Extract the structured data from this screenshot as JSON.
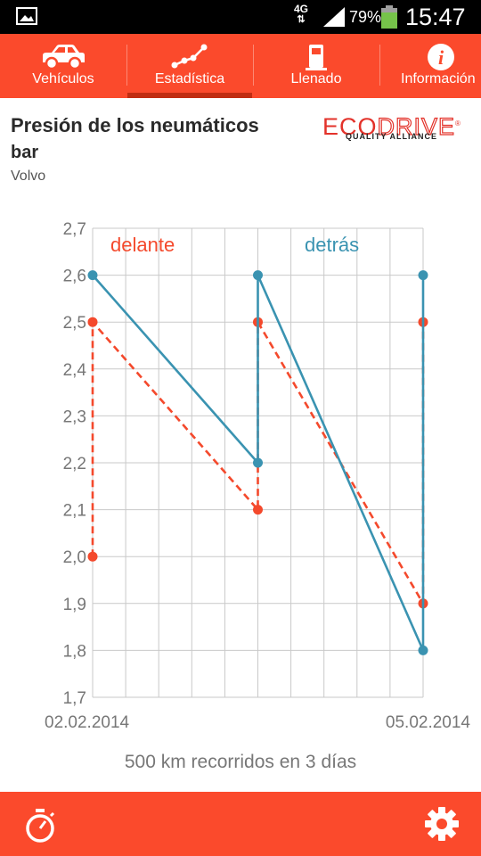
{
  "status_bar": {
    "network": "4G",
    "network_arrows": "⇅",
    "battery_percent": "79%",
    "time": "15:47"
  },
  "tabs": [
    {
      "label": "Vehículos",
      "icon": "car-icon",
      "active": false
    },
    {
      "label": "Estadística",
      "icon": "chart-line-icon",
      "active": true
    },
    {
      "label": "Llenado",
      "icon": "fuel-pump-icon",
      "active": false
    },
    {
      "label": "Información",
      "icon": "info-icon",
      "active": false
    }
  ],
  "header": {
    "title": "Presión de los neumáticos",
    "unit": "bar",
    "vehicle": "Volvo"
  },
  "logo": {
    "brand_eco": "ECO",
    "brand_drive": "DRIVE",
    "registered": "®",
    "tagline": "QUALITY ALLIANCE"
  },
  "colors": {
    "accent": "#fb4a2c",
    "front": "#f4492c",
    "rear": "#3a93b1",
    "grid": "#c9c9c9"
  },
  "chart_data": {
    "type": "line",
    "ylim": [
      1.7,
      2.7
    ],
    "yticks": [
      "2,7",
      "2,6",
      "2,5",
      "2,4",
      "2,3",
      "2,2",
      "2,1",
      "2,0",
      "1,9",
      "1,8",
      "1,7"
    ],
    "x_start_label": "02.02.2014",
    "x_end_label": "05.02.2014",
    "series": [
      {
        "name": "delante",
        "style": "dashed",
        "points": [
          [
            0,
            2.0
          ],
          [
            0,
            2.5
          ],
          [
            1,
            2.1
          ],
          [
            1,
            2.5
          ],
          [
            2,
            1.9
          ],
          [
            2,
            2.5
          ]
        ],
        "markers": [
          [
            0,
            2.0
          ],
          [
            0,
            2.5
          ],
          [
            1,
            2.1
          ],
          [
            1,
            2.5
          ],
          [
            2,
            1.9
          ],
          [
            2,
            2.5
          ]
        ]
      },
      {
        "name": "detrás",
        "style": "solid",
        "points": [
          [
            0,
            2.6
          ],
          [
            1,
            2.2
          ],
          [
            1,
            2.6
          ],
          [
            2,
            1.8
          ],
          [
            2,
            2.6
          ]
        ],
        "markers": [
          [
            0,
            2.6
          ],
          [
            1,
            2.2
          ],
          [
            1,
            2.6
          ],
          [
            2,
            1.8
          ],
          [
            2,
            2.6
          ]
        ]
      }
    ],
    "summary": "500 km recorridos en 3 días"
  }
}
